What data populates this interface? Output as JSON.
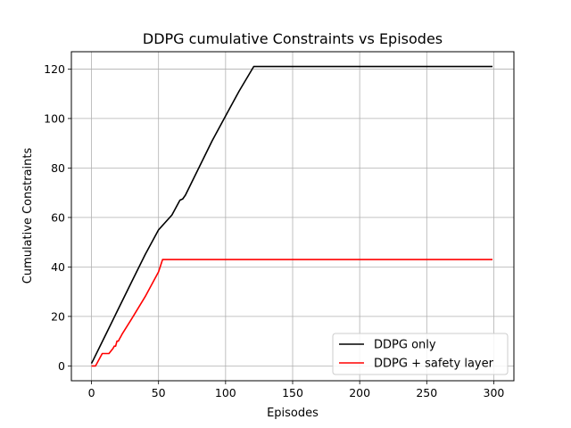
{
  "chart_data": {
    "type": "line",
    "title": "DDPG cumulative Constraints vs Episodes",
    "xlabel": "Episodes",
    "ylabel": "Cumulative Constraints",
    "xlim": [
      -15,
      315
    ],
    "ylim": [
      -6,
      127
    ],
    "xticks": [
      0,
      50,
      100,
      150,
      200,
      250,
      300
    ],
    "yticks": [
      0,
      20,
      40,
      60,
      80,
      100,
      120
    ],
    "grid": true,
    "legend_position": "lower right",
    "series": [
      {
        "name": "DDPG only",
        "color": "#000000",
        "x": [
          0,
          1,
          10,
          20,
          30,
          40,
          50,
          60,
          65,
          66,
          68,
          70,
          80,
          90,
          100,
          110,
          121,
          122,
          200,
          299
        ],
        "y": [
          1,
          2,
          12,
          23,
          34,
          45,
          55,
          61,
          66,
          67,
          67.5,
          69,
          80,
          91,
          101,
          111,
          121,
          121,
          121,
          121
        ]
      },
      {
        "name": "DDPG + safety layer",
        "color": "#ff0000",
        "x": [
          0,
          1,
          3,
          7,
          8,
          12,
          13,
          16,
          17,
          18,
          19,
          20,
          21,
          22,
          23,
          30,
          40,
          50,
          53,
          60,
          100,
          200,
          299
        ],
        "y": [
          0,
          0,
          0,
          4,
          5,
          5,
          5,
          7,
          8,
          8,
          10,
          10,
          11,
          12,
          13,
          19,
          28,
          38,
          43,
          43,
          43,
          43,
          43
        ]
      }
    ]
  }
}
